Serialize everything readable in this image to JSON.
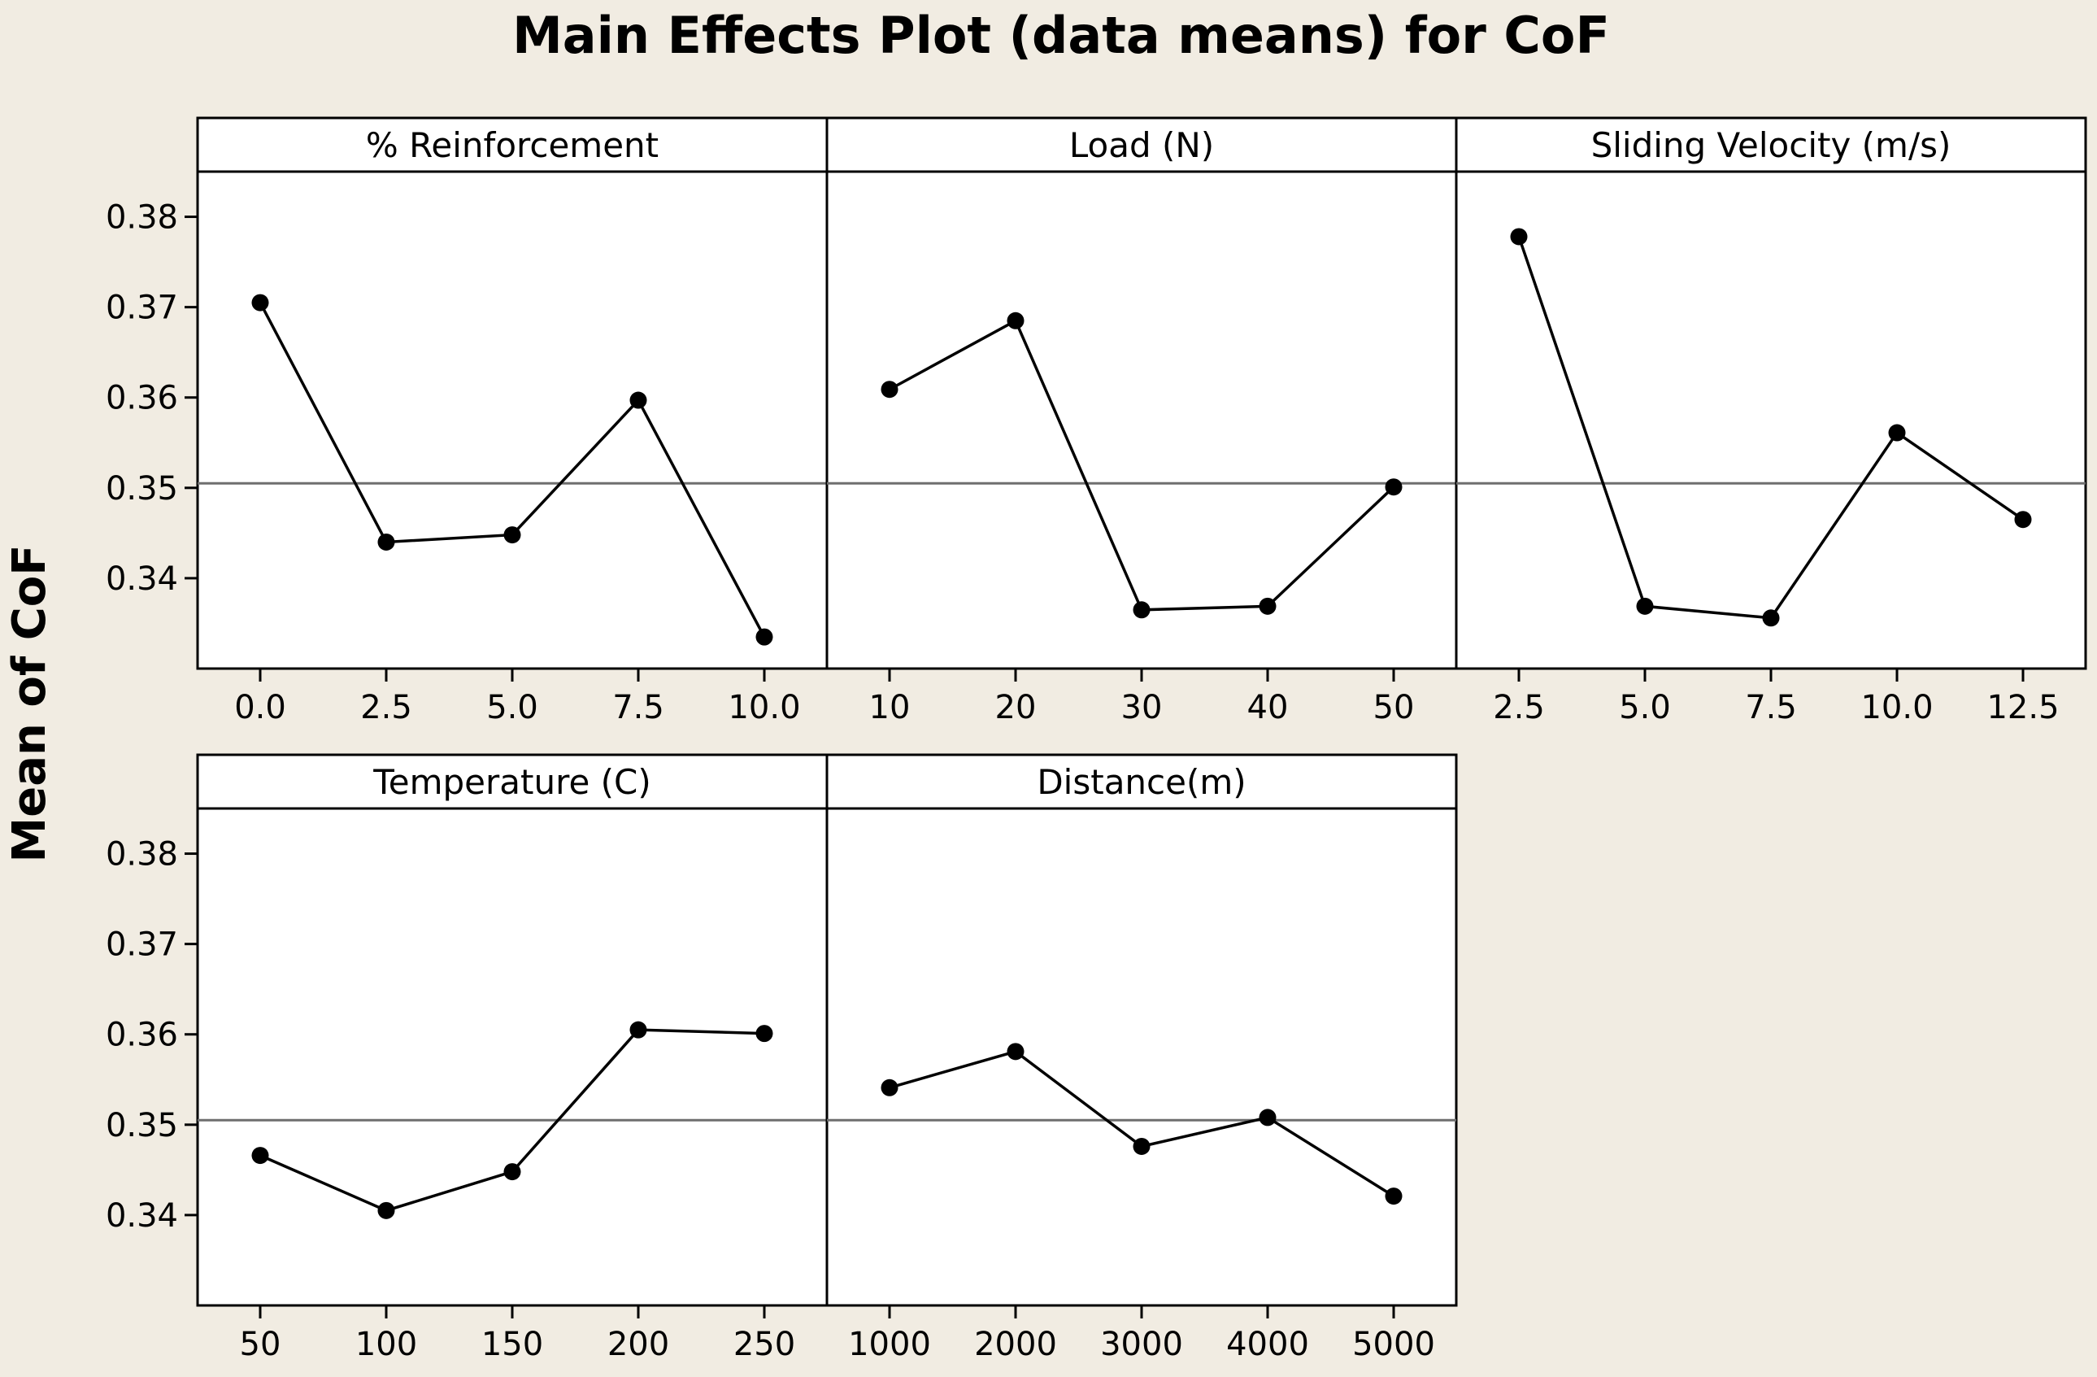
{
  "chart_data": {
    "type": "line",
    "title": "Main Effects Plot (data means) for CoF",
    "ylabel": "Mean of CoF",
    "ylim": [
      0.33,
      0.385
    ],
    "yticks": [
      0.34,
      0.35,
      0.36,
      0.37,
      0.38
    ],
    "ytick_labels": [
      "0.34",
      "0.35",
      "0.36",
      "0.37",
      "0.38"
    ],
    "reference_line": 0.3505,
    "panels": [
      {
        "title": "% Reinforcement",
        "row": 0,
        "col": 0,
        "x_labels": [
          "0.0",
          "2.5",
          "5.0",
          "7.5",
          "10.0"
        ],
        "values": [
          0.3705,
          0.344,
          0.3448,
          0.3597,
          0.3335
        ]
      },
      {
        "title": "Load (N)",
        "row": 0,
        "col": 1,
        "x_labels": [
          "10",
          "20",
          "30",
          "40",
          "50"
        ],
        "values": [
          0.3609,
          0.3685,
          0.3365,
          0.3369,
          0.3501
        ]
      },
      {
        "title": "Sliding Velocity (m/s)",
        "row": 0,
        "col": 2,
        "x_labels": [
          "2.5",
          "5.0",
          "7.5",
          "10.0",
          "12.5"
        ],
        "values": [
          0.3778,
          0.3369,
          0.3356,
          0.3561,
          0.3465
        ]
      },
      {
        "title": "Temperature (C)",
        "row": 1,
        "col": 0,
        "x_labels": [
          "50",
          "100",
          "150",
          "200",
          "250"
        ],
        "values": [
          0.3466,
          0.3405,
          0.3448,
          0.3605,
          0.3601
        ]
      },
      {
        "title": "Distance(m)",
        "row": 1,
        "col": 1,
        "x_labels": [
          "1000",
          "2000",
          "3000",
          "4000",
          "5000"
        ],
        "values": [
          0.3541,
          0.3581,
          0.3476,
          0.3508,
          0.3421
        ]
      }
    ]
  }
}
